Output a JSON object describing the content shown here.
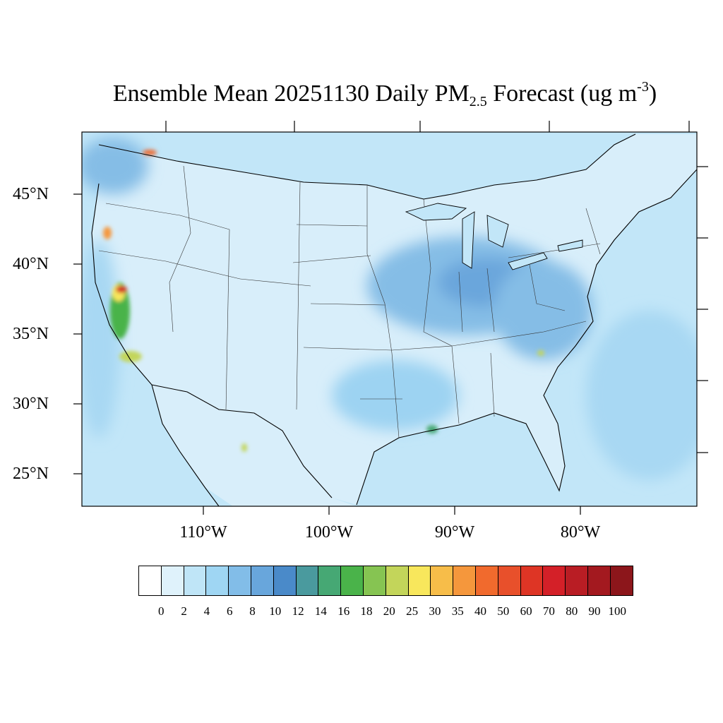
{
  "title": {
    "main": "Ensemble Mean 20251130 Daily PM",
    "sub": "2.5",
    "after_sub": " Forecast (ug m",
    "sup": "-3",
    "close": ")"
  },
  "lat_labels": [
    "45°N",
    "40°N",
    "35°N",
    "30°N",
    "25°N"
  ],
  "lon_labels": [
    "110°W",
    "100°W",
    "90°W",
    "80°W"
  ],
  "colorbar": {
    "ticks": [
      "0",
      "2",
      "4",
      "6",
      "8",
      "10",
      "12",
      "14",
      "16",
      "18",
      "20",
      "25",
      "30",
      "35",
      "40",
      "50",
      "60",
      "70",
      "80",
      "90",
      "100"
    ],
    "colors": [
      "#ffffff",
      "#dff2fb",
      "#bfe5f7",
      "#9fd6f3",
      "#82bde8",
      "#68a6dc",
      "#4a8ac9",
      "#4a9a9e",
      "#46a874",
      "#4ab34a",
      "#86c452",
      "#c3d55a",
      "#f8e75c",
      "#f7bd49",
      "#f5973c",
      "#f16a2d",
      "#e8502b",
      "#de3525",
      "#d42028",
      "#b91d24",
      "#a3191f",
      "#8c161b"
    ]
  },
  "region_colors": {
    "ocean": "#c2e6f8",
    "land_base": "#d8eefa",
    "midwest": "#85bde6",
    "ohio_valley": "#6aa6dc",
    "gulf": "#9dd3f2",
    "atlantic": "#a8d8f3"
  }
}
